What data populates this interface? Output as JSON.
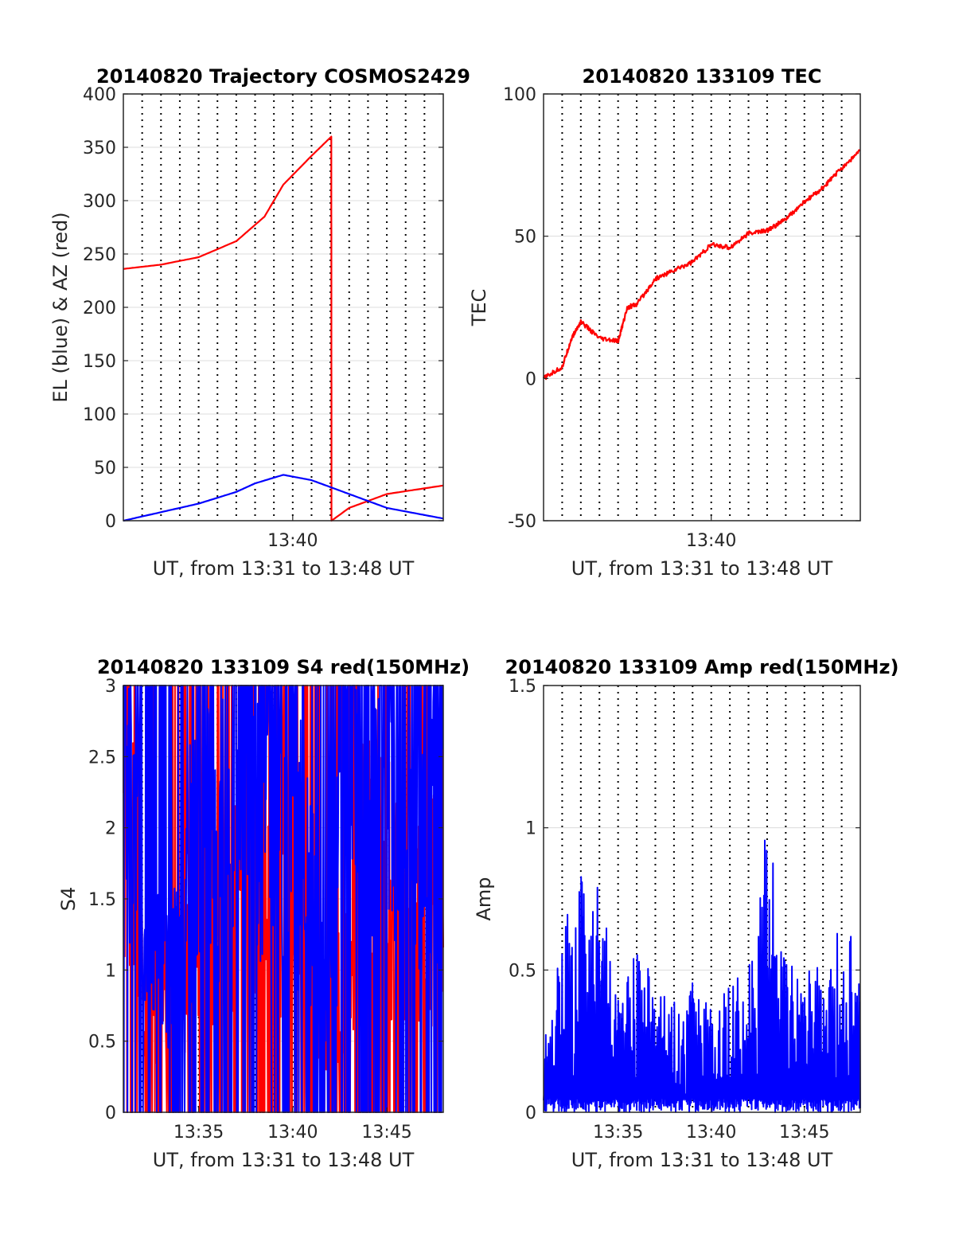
{
  "chart_data": [
    {
      "type": "line",
      "title": "20140820 Trajectory COSMOS2429",
      "xlabel": "UT, from 13:31 to 13:48 UT",
      "ylabel": "EL (blue) & AZ (red)",
      "xlim": [
        "13:31",
        "13:48"
      ],
      "ylim": [
        0,
        400
      ],
      "yticks": [
        "0",
        "50",
        "100",
        "150",
        "200",
        "250",
        "300",
        "350",
        "400"
      ],
      "xtick_labels": [
        "13:40"
      ],
      "grid": true,
      "series": [
        {
          "color": "#ff0000",
          "x": [
            "13:31",
            "13:33",
            "13:35",
            "13:37",
            "13:38.5",
            "13:39.5",
            "13:41",
            "13:42.05",
            "13:42.06",
            "13:43",
            "13:45",
            "13:48"
          ],
          "y": [
            236,
            240,
            247,
            262,
            285,
            315,
            342,
            360,
            0,
            12,
            25,
            33
          ]
        },
        {
          "color": "#0000ff",
          "x": [
            "13:31",
            "13:33",
            "13:35",
            "13:37",
            "13:38",
            "13:39.5",
            "13:41",
            "13:43",
            "13:45",
            "13:48"
          ],
          "y": [
            0,
            8,
            16,
            27,
            35,
            43,
            38,
            25,
            12,
            2
          ]
        }
      ]
    },
    {
      "type": "line",
      "title": "20140820 133109 TEC",
      "xlabel": "UT, from 13:31 to 13:48 UT",
      "ylabel": "TEC",
      "xlim": [
        "13:31",
        "13:48"
      ],
      "ylim": [
        -50,
        100
      ],
      "yticks": [
        "-50",
        "0",
        "50",
        "100"
      ],
      "xtick_labels": [
        "13:40"
      ],
      "grid": true,
      "series": [
        {
          "color": "#ff0000",
          "x": [
            "13:31",
            "13:32",
            "13:32.5",
            "13:33",
            "13:34",
            "13:35",
            "13:35.5",
            "13:36",
            "13:37",
            "13:38",
            "13:39",
            "13:40",
            "13:41",
            "13:42",
            "13:43",
            "13:44",
            "13:45",
            "13:46",
            "13:47",
            "13:48"
          ],
          "y": [
            0,
            4,
            14,
            20,
            14,
            13,
            25,
            26,
            35,
            38,
            41,
            47,
            46,
            51,
            52,
            56,
            62,
            67,
            74,
            80
          ]
        }
      ]
    },
    {
      "type": "line",
      "title": "20140820 133109 S4 red(150MHz)",
      "xlabel": "UT, from 13:31 to 13:48 UT",
      "ylabel": "S4",
      "xlim": [
        "13:31",
        "13:48"
      ],
      "ylim": [
        0,
        3
      ],
      "yticks": [
        "0",
        "0.5",
        "1",
        "1.5",
        "2",
        "2.5",
        "3"
      ],
      "xtick_labels": [
        "13:35",
        "13:40",
        "13:45"
      ],
      "grid": true,
      "series": [
        {
          "color": "#ff0000",
          "x": [
            "13:31.5",
            "13:32",
            "13:33",
            "13:34",
            "13:35",
            "13:36",
            "13:38",
            "13:40",
            "13:42",
            "13:43",
            "13:44",
            "13:46",
            "13:48"
          ],
          "y": [
            2.5,
            1.0,
            0.8,
            0.75,
            1.5,
            1.2,
            2.0,
            1.5,
            0.5,
            1.2,
            1.8,
            1.4,
            1.5
          ]
        },
        {
          "color": "#0000ff",
          "x": [
            "13:31.5",
            "13:32",
            "13:33",
            "13:34",
            "13:35",
            "13:36",
            "13:38",
            "13:40",
            "13:42",
            "13:43",
            "13:44",
            "13:46",
            "13:48"
          ],
          "y": [
            2.8,
            1.1,
            0.95,
            1.0,
            2.5,
            1.8,
            2.6,
            2.2,
            0.9,
            2.5,
            2.8,
            2.3,
            2.6
          ]
        }
      ]
    },
    {
      "type": "line",
      "title": "20140820 133109 Amp red(150MHz)",
      "xlabel": "UT, from 13:31 to 13:48 UT",
      "ylabel": "Amp",
      "xlim": [
        "13:31",
        "13:48"
      ],
      "ylim": [
        0,
        1.5
      ],
      "yticks": [
        "0",
        "0.5",
        "1",
        "1.5"
      ],
      "xtick_labels": [
        "13:35",
        "13:40",
        "13:45"
      ],
      "grid": true,
      "series": [
        {
          "color": "#0000ff",
          "x": [
            "13:31",
            "13:32",
            "13:33",
            "13:34",
            "13:35",
            "13:36",
            "13:37",
            "13:38",
            "13:39",
            "13:40",
            "13:41",
            "13:42",
            "13:43",
            "13:44",
            "13:45",
            "13:46",
            "13:47",
            "13:48"
          ],
          "y": [
            0.2,
            0.55,
            0.75,
            0.7,
            0.35,
            0.5,
            0.4,
            0.35,
            0.4,
            0.35,
            0.4,
            0.45,
            0.9,
            0.5,
            0.45,
            0.5,
            0.6,
            0.5
          ]
        }
      ]
    }
  ]
}
